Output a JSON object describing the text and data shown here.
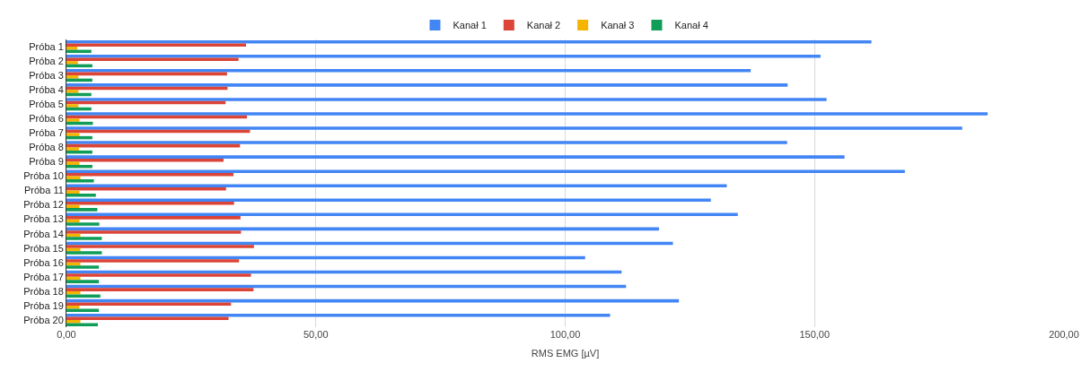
{
  "chart_data": {
    "type": "bar",
    "orientation": "horizontal",
    "xlabel": "RMS EMG [µV]",
    "categories": [
      "Próba 1",
      "Próba 2",
      "Próba 3",
      "Próba 4",
      "Próba 5",
      "Próba 6",
      "Próba 7",
      "Próba 8",
      "Próba 9",
      "Próba 10",
      "Próba 11",
      "Próba 12",
      "Próba 13",
      "Próba 14",
      "Próba 15",
      "Próba 16",
      "Próba 17",
      "Próba 18",
      "Próba 19",
      "Próba 20"
    ],
    "series": [
      {
        "name": "Kanał 1",
        "color": "#4285f4",
        "values": [
          161.4,
          151.2,
          137.2,
          144.6,
          152.4,
          184.7,
          179.6,
          144.5,
          156.0,
          168.1,
          132.4,
          129.2,
          134.6,
          118.8,
          121.6,
          104.0,
          111.3,
          112.2,
          122.8,
          109.0
        ]
      },
      {
        "name": "Kanał 2",
        "color": "#db4437",
        "values": [
          36.0,
          34.5,
          32.2,
          32.3,
          31.9,
          36.2,
          36.8,
          34.8,
          31.5,
          33.5,
          32.0,
          33.6,
          34.9,
          35.0,
          37.6,
          34.6,
          37.0,
          37.5,
          33.0,
          32.5
        ]
      },
      {
        "name": "Kanał 3",
        "color": "#f4b400",
        "values": [
          2.2,
          2.3,
          2.4,
          2.4,
          2.4,
          2.6,
          2.6,
          2.5,
          2.6,
          2.8,
          2.6,
          2.6,
          2.6,
          2.8,
          2.8,
          2.8,
          2.8,
          2.8,
          2.6,
          2.8
        ]
      },
      {
        "name": "Kanał 4",
        "color": "#0f9d58",
        "values": [
          5.0,
          5.2,
          5.2,
          5.0,
          5.0,
          5.3,
          5.2,
          5.2,
          5.2,
          5.5,
          5.9,
          6.2,
          6.6,
          7.1,
          7.1,
          6.5,
          6.5,
          6.8,
          6.5,
          6.3
        ]
      }
    ],
    "xlim": [
      0,
      200
    ],
    "xticks": [
      {
        "value": 0,
        "label": "0,00"
      },
      {
        "value": 50,
        "label": "50,00"
      },
      {
        "value": 100,
        "label": "100,00"
      },
      {
        "value": 150,
        "label": "150,00"
      },
      {
        "value": 200,
        "label": "200,00"
      }
    ],
    "grid": "x",
    "legend": "top"
  }
}
